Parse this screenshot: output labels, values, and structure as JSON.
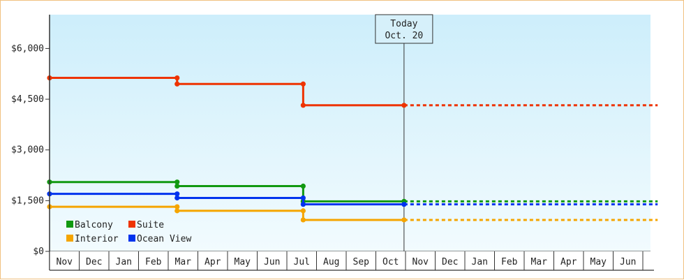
{
  "chart_data": {
    "type": "line",
    "step": true,
    "currency_prefix": "$",
    "y_ticks": [
      0,
      1500,
      3000,
      4500,
      6000
    ],
    "ylim": [
      0,
      7000
    ],
    "grid": false,
    "months": [
      "Nov",
      "Dec",
      "Jan",
      "Feb",
      "Mar",
      "Apr",
      "May",
      "Jun",
      "Jul",
      "Aug",
      "Sep",
      "Oct",
      "Nov",
      "Dec",
      "Jan",
      "Feb",
      "Mar",
      "Apr",
      "May",
      "Jun"
    ],
    "today": {
      "label_line1": "Today",
      "label_line2": "Oct. 20",
      "x": 11.95
    },
    "legend_position": "bottom-left",
    "series": [
      {
        "name": "Balcony",
        "color": "#119911",
        "points": [
          [
            0,
            2050
          ],
          [
            4.3,
            2050
          ],
          [
            4.3,
            1930
          ],
          [
            8.55,
            1930
          ],
          [
            8.55,
            1480
          ],
          [
            11.95,
            1480
          ]
        ],
        "projection_end": 20.5
      },
      {
        "name": "Suite",
        "color": "#ee3300",
        "points": [
          [
            0,
            5130
          ],
          [
            4.3,
            5130
          ],
          [
            4.3,
            4950
          ],
          [
            8.55,
            4950
          ],
          [
            8.55,
            4320
          ],
          [
            11.95,
            4320
          ]
        ],
        "projection_end": 20.5
      },
      {
        "name": "Interior",
        "color": "#f5a500",
        "points": [
          [
            0,
            1320
          ],
          [
            4.3,
            1320
          ],
          [
            4.3,
            1200
          ],
          [
            8.55,
            1200
          ],
          [
            8.55,
            930
          ],
          [
            11.95,
            930
          ]
        ],
        "projection_end": 20.5
      },
      {
        "name": "Ocean View",
        "color": "#0033ee",
        "points": [
          [
            0,
            1700
          ],
          [
            4.3,
            1700
          ],
          [
            4.3,
            1580
          ],
          [
            8.55,
            1580
          ],
          [
            8.55,
            1390
          ],
          [
            11.95,
            1390
          ]
        ],
        "projection_end": 20.5
      }
    ],
    "legend_order": [
      "Balcony",
      "Suite",
      "Interior",
      "Ocean View"
    ]
  }
}
